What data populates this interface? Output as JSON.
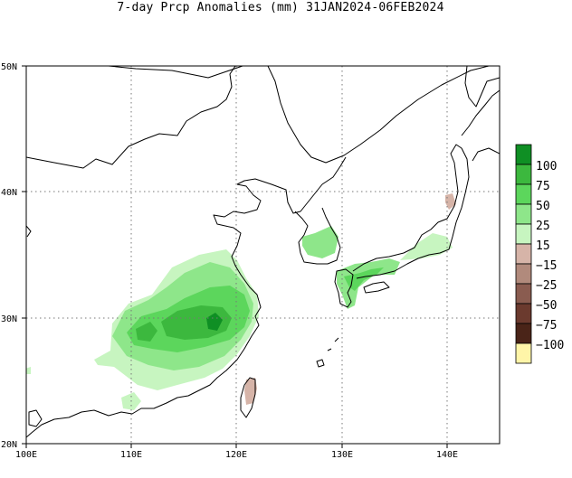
{
  "title": "7-day Prcp Anomalies (mm) 31JAN2024-06FEB2024",
  "map": {
    "lon_labels": [
      "100E",
      "110E",
      "120E",
      "130E",
      "140E"
    ],
    "lat_labels": [
      "50N",
      "40N",
      "30N",
      "20N"
    ],
    "lon_range": [
      100,
      145
    ],
    "lat_range": [
      20,
      50
    ],
    "grid": true
  },
  "legend": {
    "entries": [
      {
        "label": "100",
        "color": "#0f8f24"
      },
      {
        "label": "75",
        "color": "#3cb83e"
      },
      {
        "label": "50",
        "color": "#5cd65c"
      },
      {
        "label": "25",
        "color": "#8ee68a"
      },
      {
        "label": "15",
        "color": "#c7f5c0"
      },
      {
        "label": "",
        "color": "#ffffff"
      },
      {
        "label": "−15",
        "color": "#d6b4a8"
      },
      {
        "label": "−25",
        "color": "#b18a7c"
      },
      {
        "label": "−50",
        "color": "#8a5c50"
      },
      {
        "label": "−75",
        "color": "#6b3a2e"
      },
      {
        "label": "−100",
        "color": "#4a2418"
      },
      {
        "label": "",
        "color": "#fff5a8"
      }
    ]
  }
}
